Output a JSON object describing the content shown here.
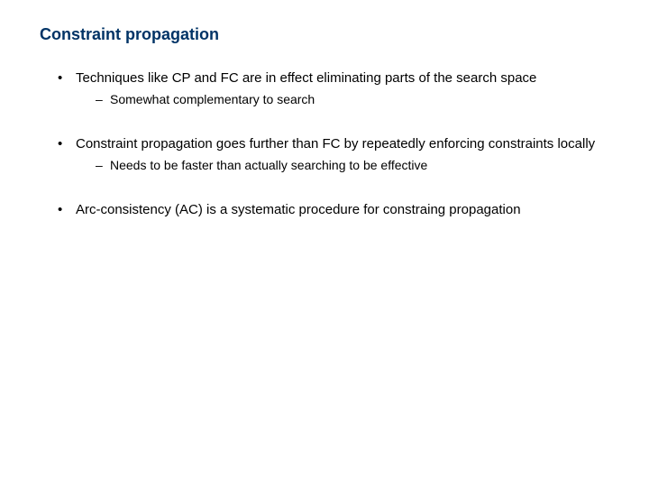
{
  "title": "Constraint propagation",
  "bullets": [
    {
      "text": "Techniques like CP and FC are in effect eliminating parts of the search space",
      "sub": [
        "Somewhat complementary to search"
      ]
    },
    {
      "text": "Constraint propagation goes further than FC by repeatedly enforcing constraints locally",
      "sub": [
        "Needs to be faster than actually searching to be effective"
      ]
    },
    {
      "text": "Arc-consistency (AC) is a systematic procedure for constraing propagation",
      "sub": []
    }
  ],
  "colors": {
    "title": "#003366",
    "text": "#000000",
    "background": "#ffffff"
  },
  "fonts": {
    "family": "Verdana",
    "title_size_pt": 18,
    "body_size_pt": 15,
    "sub_size_pt": 14
  }
}
